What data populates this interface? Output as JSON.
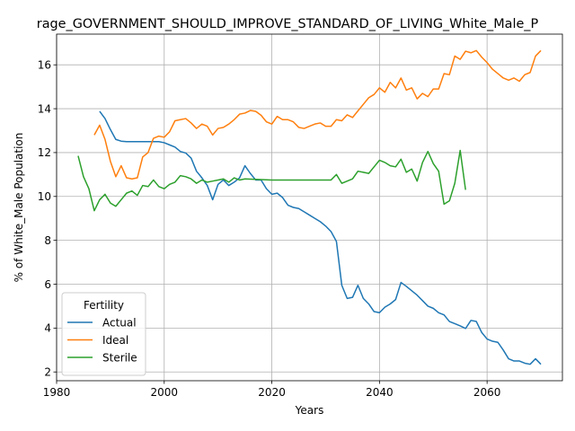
{
  "chart_data": {
    "type": "line",
    "title": "rage_GOVERNMENT_SHOULD_IMPROVE_STANDARD_OF_LIVING_White_Male_P",
    "xlabel": "Years",
    "ylabel": "% of White_Male Population",
    "xlim": [
      1980,
      2074
    ],
    "ylim": [
      1.6,
      17.4
    ],
    "x_ticks": [
      1980,
      2000,
      2020,
      2040,
      2060
    ],
    "y_ticks": [
      2,
      4,
      6,
      8,
      10,
      12,
      14,
      16
    ],
    "grid": true,
    "legend": {
      "title": "Fertility",
      "placement": "bottom-left"
    },
    "series": [
      {
        "name": "Actual",
        "color": "#1f77b4",
        "points": [
          [
            1988,
            13.88
          ],
          [
            1989,
            13.55
          ],
          [
            1990,
            13.05
          ],
          [
            1991,
            12.6
          ],
          [
            1992,
            12.52
          ],
          [
            1993,
            12.5
          ],
          [
            1995,
            12.5
          ],
          [
            1997,
            12.5
          ],
          [
            1999,
            12.5
          ],
          [
            2000,
            12.45
          ],
          [
            2001,
            12.35
          ],
          [
            2002,
            12.25
          ],
          [
            2003,
            12.05
          ],
          [
            2004,
            11.98
          ],
          [
            2005,
            11.75
          ],
          [
            2006,
            11.15
          ],
          [
            2007,
            10.85
          ],
          [
            2008,
            10.5
          ],
          [
            2009,
            9.85
          ],
          [
            2010,
            10.55
          ],
          [
            2011,
            10.75
          ],
          [
            2012,
            10.5
          ],
          [
            2013,
            10.65
          ],
          [
            2014,
            10.85
          ],
          [
            2015,
            11.4
          ],
          [
            2016,
            11.05
          ],
          [
            2017,
            10.75
          ],
          [
            2018,
            10.75
          ],
          [
            2019,
            10.35
          ],
          [
            2020,
            10.1
          ],
          [
            2021,
            10.15
          ],
          [
            2022,
            9.95
          ],
          [
            2023,
            9.6
          ],
          [
            2024,
            9.5
          ],
          [
            2025,
            9.45
          ],
          [
            2026,
            9.3
          ],
          [
            2027,
            9.15
          ],
          [
            2028,
            9.0
          ],
          [
            2029,
            8.85
          ],
          [
            2030,
            8.65
          ],
          [
            2031,
            8.4
          ],
          [
            2032,
            7.95
          ],
          [
            2033,
            5.95
          ],
          [
            2034,
            5.35
          ],
          [
            2035,
            5.4
          ],
          [
            2036,
            5.95
          ],
          [
            2037,
            5.35
          ],
          [
            2038,
            5.1
          ],
          [
            2039,
            4.75
          ],
          [
            2040,
            4.7
          ],
          [
            2041,
            4.95
          ],
          [
            2042,
            5.1
          ],
          [
            2043,
            5.3
          ],
          [
            2044,
            6.08
          ],
          [
            2045,
            5.9
          ],
          [
            2046,
            5.7
          ],
          [
            2047,
            5.5
          ],
          [
            2048,
            5.25
          ],
          [
            2049,
            5.0
          ],
          [
            2050,
            4.9
          ],
          [
            2051,
            4.7
          ],
          [
            2052,
            4.6
          ],
          [
            2053,
            4.3
          ],
          [
            2054,
            4.2
          ],
          [
            2055,
            4.1
          ],
          [
            2056,
            3.98
          ],
          [
            2057,
            4.35
          ],
          [
            2058,
            4.3
          ],
          [
            2059,
            3.8
          ],
          [
            2060,
            3.5
          ],
          [
            2061,
            3.4
          ],
          [
            2062,
            3.35
          ],
          [
            2063,
            3.0
          ],
          [
            2064,
            2.6
          ],
          [
            2065,
            2.5
          ],
          [
            2066,
            2.5
          ],
          [
            2067,
            2.4
          ],
          [
            2068,
            2.35
          ],
          [
            2069,
            2.6
          ],
          [
            2070,
            2.35
          ]
        ]
      },
      {
        "name": "Ideal",
        "color": "#ff7f0e",
        "points": [
          [
            1987,
            12.8
          ],
          [
            1988,
            13.25
          ],
          [
            1989,
            12.6
          ],
          [
            1990,
            11.6
          ],
          [
            1991,
            10.9
          ],
          [
            1992,
            11.4
          ],
          [
            1993,
            10.85
          ],
          [
            1994,
            10.8
          ],
          [
            1995,
            10.85
          ],
          [
            1996,
            11.8
          ],
          [
            1997,
            12.0
          ],
          [
            1998,
            12.65
          ],
          [
            1999,
            12.75
          ],
          [
            2000,
            12.7
          ],
          [
            2001,
            12.95
          ],
          [
            2002,
            13.45
          ],
          [
            2003,
            13.5
          ],
          [
            2004,
            13.55
          ],
          [
            2005,
            13.35
          ],
          [
            2006,
            13.1
          ],
          [
            2007,
            13.3
          ],
          [
            2008,
            13.2
          ],
          [
            2009,
            12.8
          ],
          [
            2010,
            13.1
          ],
          [
            2011,
            13.15
          ],
          [
            2012,
            13.3
          ],
          [
            2013,
            13.5
          ],
          [
            2014,
            13.75
          ],
          [
            2015,
            13.8
          ],
          [
            2016,
            13.92
          ],
          [
            2017,
            13.88
          ],
          [
            2018,
            13.7
          ],
          [
            2019,
            13.4
          ],
          [
            2020,
            13.3
          ],
          [
            2021,
            13.65
          ],
          [
            2022,
            13.5
          ],
          [
            2023,
            13.5
          ],
          [
            2024,
            13.4
          ],
          [
            2025,
            13.15
          ],
          [
            2026,
            13.1
          ],
          [
            2027,
            13.2
          ],
          [
            2028,
            13.3
          ],
          [
            2029,
            13.35
          ],
          [
            2030,
            13.2
          ],
          [
            2031,
            13.2
          ],
          [
            2032,
            13.5
          ],
          [
            2033,
            13.45
          ],
          [
            2034,
            13.72
          ],
          [
            2035,
            13.6
          ],
          [
            2036,
            13.9
          ],
          [
            2037,
            14.2
          ],
          [
            2038,
            14.5
          ],
          [
            2039,
            14.65
          ],
          [
            2040,
            14.95
          ],
          [
            2041,
            14.75
          ],
          [
            2042,
            15.2
          ],
          [
            2043,
            14.95
          ],
          [
            2044,
            15.4
          ],
          [
            2045,
            14.85
          ],
          [
            2046,
            14.95
          ],
          [
            2047,
            14.45
          ],
          [
            2048,
            14.7
          ],
          [
            2049,
            14.55
          ],
          [
            2050,
            14.9
          ],
          [
            2051,
            14.9
          ],
          [
            2052,
            15.6
          ],
          [
            2053,
            15.55
          ],
          [
            2054,
            16.4
          ],
          [
            2055,
            16.25
          ],
          [
            2056,
            16.62
          ],
          [
            2057,
            16.55
          ],
          [
            2058,
            16.65
          ],
          [
            2059,
            16.35
          ],
          [
            2060,
            16.1
          ],
          [
            2061,
            15.8
          ],
          [
            2062,
            15.6
          ],
          [
            2063,
            15.4
          ],
          [
            2064,
            15.3
          ],
          [
            2065,
            15.4
          ],
          [
            2066,
            15.25
          ],
          [
            2067,
            15.55
          ],
          [
            2068,
            15.65
          ],
          [
            2069,
            16.4
          ],
          [
            2070,
            16.65
          ]
        ]
      },
      {
        "name": "Sterile",
        "color": "#2ca02c",
        "points": [
          [
            1984,
            11.85
          ],
          [
            1985,
            10.9
          ],
          [
            1986,
            10.35
          ],
          [
            1987,
            9.35
          ],
          [
            1988,
            9.85
          ],
          [
            1989,
            10.1
          ],
          [
            1990,
            9.7
          ],
          [
            1991,
            9.55
          ],
          [
            1992,
            9.85
          ],
          [
            1993,
            10.15
          ],
          [
            1994,
            10.25
          ],
          [
            1995,
            10.05
          ],
          [
            1996,
            10.5
          ],
          [
            1997,
            10.45
          ],
          [
            1998,
            10.75
          ],
          [
            1999,
            10.45
          ],
          [
            2000,
            10.35
          ],
          [
            2001,
            10.55
          ],
          [
            2002,
            10.65
          ],
          [
            2003,
            10.95
          ],
          [
            2004,
            10.9
          ],
          [
            2005,
            10.8
          ],
          [
            2006,
            10.6
          ],
          [
            2007,
            10.75
          ],
          [
            2008,
            10.65
          ],
          [
            2009,
            10.7
          ],
          [
            2010,
            10.75
          ],
          [
            2011,
            10.8
          ],
          [
            2012,
            10.65
          ],
          [
            2013,
            10.85
          ],
          [
            2014,
            10.75
          ],
          [
            2015,
            10.8
          ],
          [
            2020,
            10.75
          ],
          [
            2025,
            10.75
          ],
          [
            2031,
            10.75
          ],
          [
            2032,
            11.0
          ],
          [
            2033,
            10.6
          ],
          [
            2034,
            10.7
          ],
          [
            2035,
            10.8
          ],
          [
            2036,
            11.15
          ],
          [
            2037,
            11.1
          ],
          [
            2038,
            11.05
          ],
          [
            2039,
            11.35
          ],
          [
            2040,
            11.65
          ],
          [
            2041,
            11.55
          ],
          [
            2042,
            11.4
          ],
          [
            2043,
            11.35
          ],
          [
            2044,
            11.7
          ],
          [
            2045,
            11.1
          ],
          [
            2046,
            11.25
          ],
          [
            2047,
            10.7
          ],
          [
            2048,
            11.55
          ],
          [
            2049,
            12.05
          ],
          [
            2050,
            11.5
          ],
          [
            2051,
            11.15
          ],
          [
            2052,
            9.65
          ],
          [
            2053,
            9.8
          ],
          [
            2054,
            10.6
          ],
          [
            2055,
            12.1
          ],
          [
            2056,
            10.3
          ]
        ]
      }
    ]
  }
}
